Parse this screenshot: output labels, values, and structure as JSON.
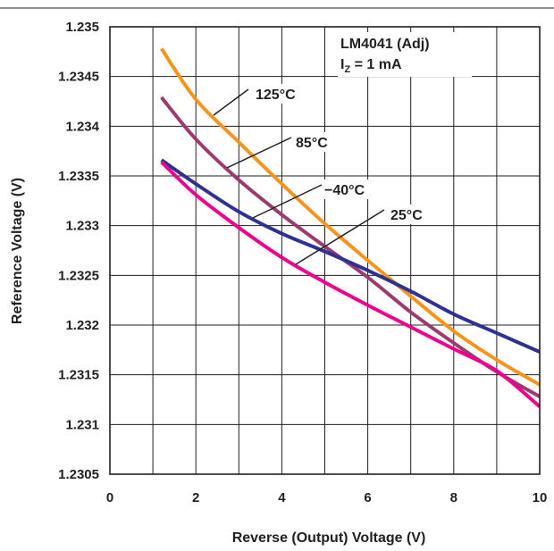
{
  "chart_data": {
    "type": "line",
    "xlabel": "Reverse (Output) Voltage (V)",
    "ylabel": "Reference Voltage (V)",
    "xlim": [
      0,
      10
    ],
    "ylim": [
      1.2305,
      1.235
    ],
    "grid": true,
    "x_ticks": [
      "0",
      "2",
      "4",
      "6",
      "8",
      "10"
    ],
    "y_ticks": [
      "1.2305",
      "1.231",
      "1.2315",
      "1.232",
      "1.2325",
      "1.233",
      "1.2335",
      "1.234",
      "1.2345",
      "1.235"
    ],
    "annotation": {
      "device": "LM4041 (Adj)",
      "current_main": "I",
      "current_sub": "Z",
      "current_rest": " = 1 mA"
    },
    "series": [
      {
        "name": "125°C",
        "color": "#f7941d",
        "x": [
          1.2,
          2,
          3,
          4,
          5,
          6,
          7,
          8,
          9,
          10
        ],
        "y": [
          1.23478,
          1.23427,
          1.23384,
          1.23342,
          1.23302,
          1.23265,
          1.23229,
          1.23194,
          1.23165,
          1.2314
        ]
      },
      {
        "name": "85°C",
        "color": "#9b3b6f",
        "x": [
          1.2,
          2,
          3,
          4,
          5,
          6,
          7,
          8,
          9,
          10
        ],
        "y": [
          1.23429,
          1.23387,
          1.23346,
          1.23311,
          1.23279,
          1.23248,
          1.23213,
          1.23182,
          1.23153,
          1.23128
        ]
      },
      {
        "name": "−40°C",
        "color": "#2e3192",
        "x": [
          1.2,
          2,
          3,
          4,
          5,
          6,
          7,
          8,
          9,
          10
        ],
        "y": [
          1.23366,
          1.23342,
          1.23314,
          1.23292,
          1.23274,
          1.23255,
          1.23234,
          1.23211,
          1.23192,
          1.23173
        ]
      },
      {
        "name": "25°C",
        "color": "#ec008c",
        "x": [
          1.2,
          2,
          3,
          4,
          5,
          6,
          7,
          8,
          9,
          10
        ],
        "y": [
          1.23364,
          1.23331,
          1.23298,
          1.23268,
          1.23243,
          1.2322,
          1.23198,
          1.23176,
          1.23154,
          1.23118
        ]
      }
    ],
    "series_labels": [
      "125°C",
      "85°C",
      "−40°C",
      "25°C"
    ]
  }
}
